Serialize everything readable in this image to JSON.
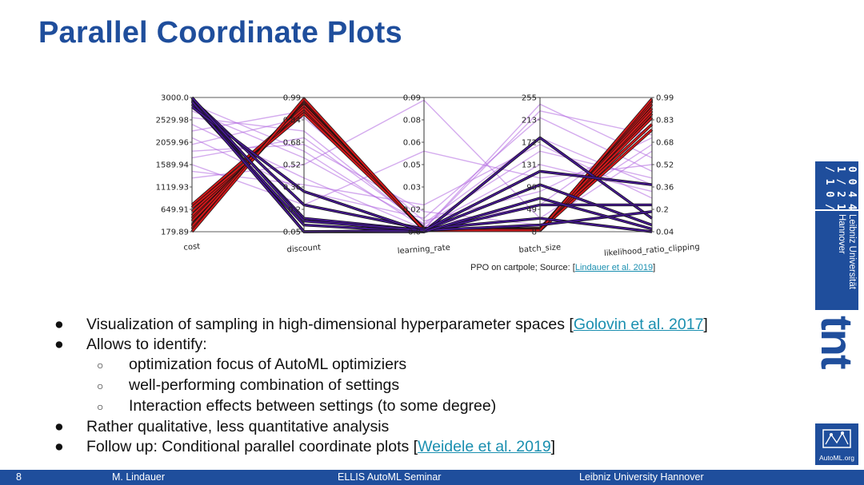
{
  "slide": {
    "title": "Parallel Coordinate Plots",
    "caption": {
      "prefix": "PPO on cartpole; Source: [",
      "link": "Lindauer et al. 2019",
      "suffix": "]"
    }
  },
  "bullets": {
    "b1_text": "Visualization of sampling in high-dimensional hyperparameter spaces [",
    "b1_link": "Golovin et al. 2017",
    "b1_end": "]",
    "b2": "Allows to identify:",
    "s1": "optimization focus of AutoML optimiziers",
    "s2": "well-performing combination of settings",
    "s3": "Interaction effects between settings (to some degree)",
    "b3": "Rather qualitative, less quantitative analysis",
    "b4_text": "Follow up: Conditional parallel coordinate plots [",
    "b4_link": "Weidele et al. 2019",
    "b4_end": "]",
    "bullet_glyph": "●",
    "sub_glyph": "○"
  },
  "sidebar": {
    "logo_text": "Leibniz Universität Hannover",
    "tnt_text": "tnt",
    "automl_text": "AutoML.org"
  },
  "footer": {
    "page": "8",
    "author": "M. Lindauer",
    "event": "ELLIS AutoML Seminar",
    "university": "Leibniz University Hannover"
  },
  "colors": {
    "brand_blue": "#1f4e9c",
    "link": "#1a8fb0",
    "best_red": "#e41a1c",
    "purple_dark": "#4b1a9e",
    "purple_light": "#b066e0"
  },
  "chart_data": {
    "type": "parallel_coordinates",
    "axes": [
      {
        "name": "cost",
        "ticks": [
          "3000.0",
          "2529.98",
          "2059.96",
          "1589.94",
          "1119.93",
          "649.91",
          "179.89"
        ]
      },
      {
        "name": "discount",
        "ticks": [
          "0.99",
          "0.84",
          "0.68",
          "0.52",
          "0.36",
          "0.2",
          "0.05"
        ]
      },
      {
        "name": "learning_rate",
        "ticks": [
          "0.09",
          "0.08",
          "0.06",
          "0.05",
          "0.03",
          "0.02",
          "0.0"
        ]
      },
      {
        "name": "batch_size",
        "ticks": [
          "255",
          "213",
          "172",
          "131",
          "90",
          "49",
          "8"
        ]
      },
      {
        "name": "likelihood_ratio_clipping",
        "ticks": [
          "0.99",
          "0.83",
          "0.68",
          "0.52",
          "0.36",
          "0.2",
          "0.04"
        ]
      }
    ],
    "groups": [
      {
        "name": "best",
        "color": "#e41a1c",
        "lines": [
          [
            0.1,
            0.96,
            0.015,
            0.015,
            0.98
          ],
          [
            0.05,
            0.95,
            0.02,
            0.01,
            0.95
          ],
          [
            0.12,
            0.93,
            0.01,
            0.02,
            0.92
          ],
          [
            0.02,
            0.97,
            0.015,
            0.01,
            0.88
          ],
          [
            0.15,
            0.9,
            0.025,
            0.015,
            0.85
          ],
          [
            0.08,
            0.94,
            0.01,
            0.025,
            0.8
          ],
          [
            0.2,
            0.92,
            0.02,
            0.01,
            0.76
          ],
          [
            0.04,
            0.98,
            0.015,
            0.02,
            0.97
          ],
          [
            0.18,
            0.88,
            0.02,
            0.015,
            0.9
          ],
          [
            0.0,
            0.99,
            0.01,
            0.01,
            0.99
          ]
        ]
      },
      {
        "name": "mid",
        "color": "#b066e0",
        "lines": [
          [
            0.55,
            0.7,
            0.05,
            0.6,
            0.4
          ],
          [
            0.8,
            0.4,
            0.02,
            0.95,
            0.55
          ],
          [
            0.65,
            0.85,
            0.08,
            0.3,
            0.7
          ],
          [
            0.95,
            0.6,
            0.03,
            0.5,
            0.3
          ],
          [
            0.4,
            0.5,
            0.98,
            0.1,
            0.65
          ],
          [
            0.7,
            0.3,
            0.1,
            0.85,
            0.45
          ],
          [
            0.85,
            0.75,
            0.04,
            0.2,
            0.8
          ],
          [
            0.5,
            0.2,
            0.6,
            0.4,
            0.5
          ],
          [
            0.9,
            0.55,
            0.06,
            0.7,
            0.35
          ],
          [
            0.6,
            0.65,
            0.15,
            0.05,
            0.6
          ],
          [
            0.75,
            0.9,
            0.02,
            0.9,
            0.72
          ],
          [
            0.45,
            0.35,
            0.2,
            0.65,
            0.25
          ]
        ]
      },
      {
        "name": "worst",
        "color": "#4b1a9e",
        "lines": [
          [
            1.0,
            0.0,
            0.0,
            0.7,
            0.1
          ],
          [
            0.98,
            0.1,
            0.01,
            0.35,
            0.05
          ],
          [
            0.95,
            0.05,
            0.0,
            0.2,
            0.2
          ],
          [
            0.99,
            0.2,
            0.02,
            0.1,
            0.0
          ],
          [
            0.97,
            0.0,
            0.01,
            0.05,
            0.15
          ],
          [
            0.93,
            0.3,
            0.0,
            0.25,
            0.02
          ],
          [
            1.0,
            0.08,
            0.01,
            0.45,
            0.35
          ]
        ]
      }
    ]
  }
}
